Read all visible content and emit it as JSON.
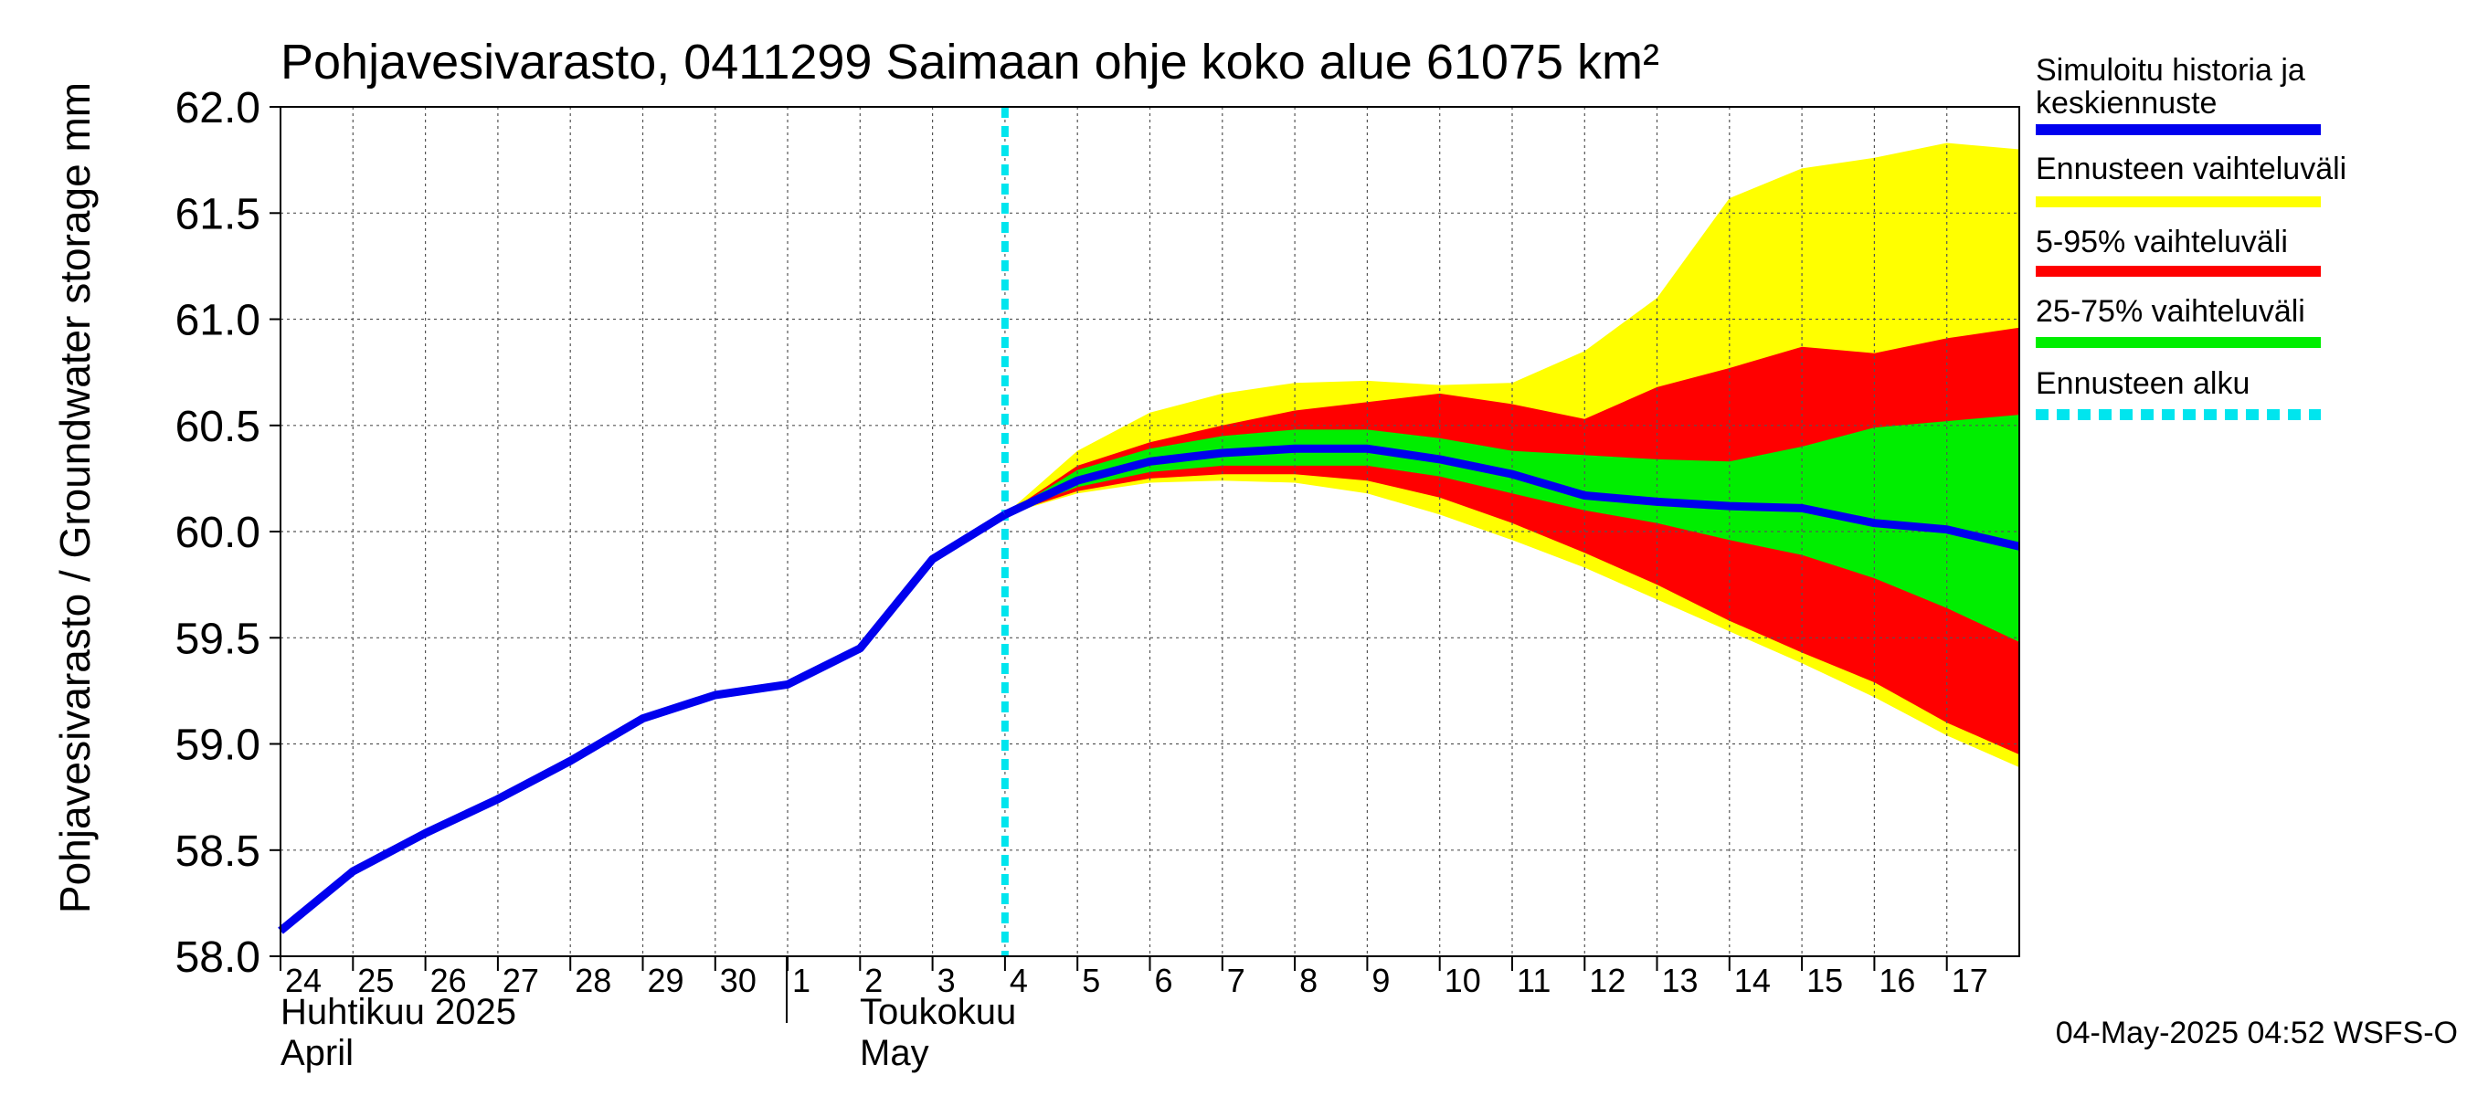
{
  "chart_data": {
    "type": "area",
    "title": "Pohjavesivarasto, 0411299 Saimaan ohje koko alue 61075 km²",
    "ylabel": "Pohjavesivarasto / Groundwater storage   mm",
    "ylim": [
      58.0,
      62.0
    ],
    "yticks": [
      "58.0",
      "58.5",
      "59.0",
      "59.5",
      "60.0",
      "60.5",
      "61.0",
      "61.5",
      "62.0"
    ],
    "xticks": [
      "24",
      "25",
      "26",
      "27",
      "28",
      "29",
      "30",
      "1",
      "2",
      "3",
      "4",
      "5",
      "6",
      "7",
      "8",
      "9",
      "10",
      "11",
      "12",
      "13",
      "14",
      "15",
      "16",
      "17"
    ],
    "month_labels": {
      "april_fi": "Huhtikuu  2025",
      "april_en": "April",
      "may_fi": "Toukokuu",
      "may_en": "May"
    },
    "forecast_start": "2025-05-04",
    "history": {
      "name": "Simuloitu historia ja keskiennuste",
      "x": [
        "2025-04-24",
        "2025-04-25",
        "2025-04-26",
        "2025-04-27",
        "2025-04-28",
        "2025-04-29",
        "2025-04-30",
        "2025-05-01",
        "2025-05-02",
        "2025-05-03",
        "2025-05-04"
      ],
      "values": [
        58.12,
        58.4,
        58.58,
        58.74,
        58.92,
        59.12,
        59.23,
        59.28,
        59.45,
        59.87,
        60.08
      ]
    },
    "forecast": {
      "x": [
        "2025-05-04",
        "2025-05-05",
        "2025-05-06",
        "2025-05-07",
        "2025-05-08",
        "2025-05-09",
        "2025-05-10",
        "2025-05-11",
        "2025-05-12",
        "2025-05-13",
        "2025-05-14",
        "2025-05-15",
        "2025-05-16",
        "2025-05-17",
        "2025-05-18"
      ],
      "median": [
        60.08,
        60.24,
        60.33,
        60.37,
        60.39,
        60.39,
        60.34,
        60.27,
        60.17,
        60.14,
        60.12,
        60.11,
        60.04,
        60.01,
        59.93
      ],
      "p25": [
        60.08,
        60.21,
        60.28,
        60.31,
        60.31,
        60.31,
        60.26,
        60.18,
        60.1,
        60.04,
        59.96,
        59.89,
        59.78,
        59.64,
        59.48
      ],
      "p75": [
        60.08,
        60.29,
        60.39,
        60.45,
        60.48,
        60.48,
        60.44,
        60.38,
        60.36,
        60.34,
        60.33,
        60.4,
        60.49,
        60.52,
        60.55
      ],
      "p5": [
        60.08,
        60.19,
        60.25,
        60.27,
        60.27,
        60.24,
        60.16,
        60.04,
        59.9,
        59.75,
        59.58,
        59.43,
        59.29,
        59.1,
        58.95
      ],
      "p95": [
        60.08,
        60.31,
        60.42,
        60.5,
        60.57,
        60.61,
        60.65,
        60.6,
        60.53,
        60.68,
        60.77,
        60.87,
        60.84,
        60.91,
        60.96
      ],
      "min": [
        60.08,
        60.18,
        60.23,
        60.24,
        60.23,
        60.18,
        60.08,
        59.96,
        59.83,
        59.68,
        59.53,
        59.38,
        59.22,
        59.04,
        58.89
      ],
      "max": [
        60.08,
        60.38,
        60.56,
        60.65,
        60.7,
        60.71,
        60.69,
        60.7,
        60.85,
        61.1,
        61.57,
        61.71,
        61.76,
        61.83,
        61.8
      ]
    },
    "legend": [
      {
        "label": "Simuloitu historia ja keskiennuste",
        "color": "#0000ee",
        "style": "line"
      },
      {
        "label": "Ennusteen vaihteluväli",
        "color": "#ffff00",
        "style": "band"
      },
      {
        "label": "5-95% vaihteluväli",
        "color": "#ff0000",
        "style": "band"
      },
      {
        "label": "25-75% vaihteluväli",
        "color": "#00ee00",
        "style": "band"
      },
      {
        "label": "Ennusteen alku",
        "color": "#00e5ee",
        "style": "dashed"
      }
    ],
    "legend_placement": "right",
    "grid": true,
    "footer": "04-May-2025 04:52 WSFS-O"
  }
}
